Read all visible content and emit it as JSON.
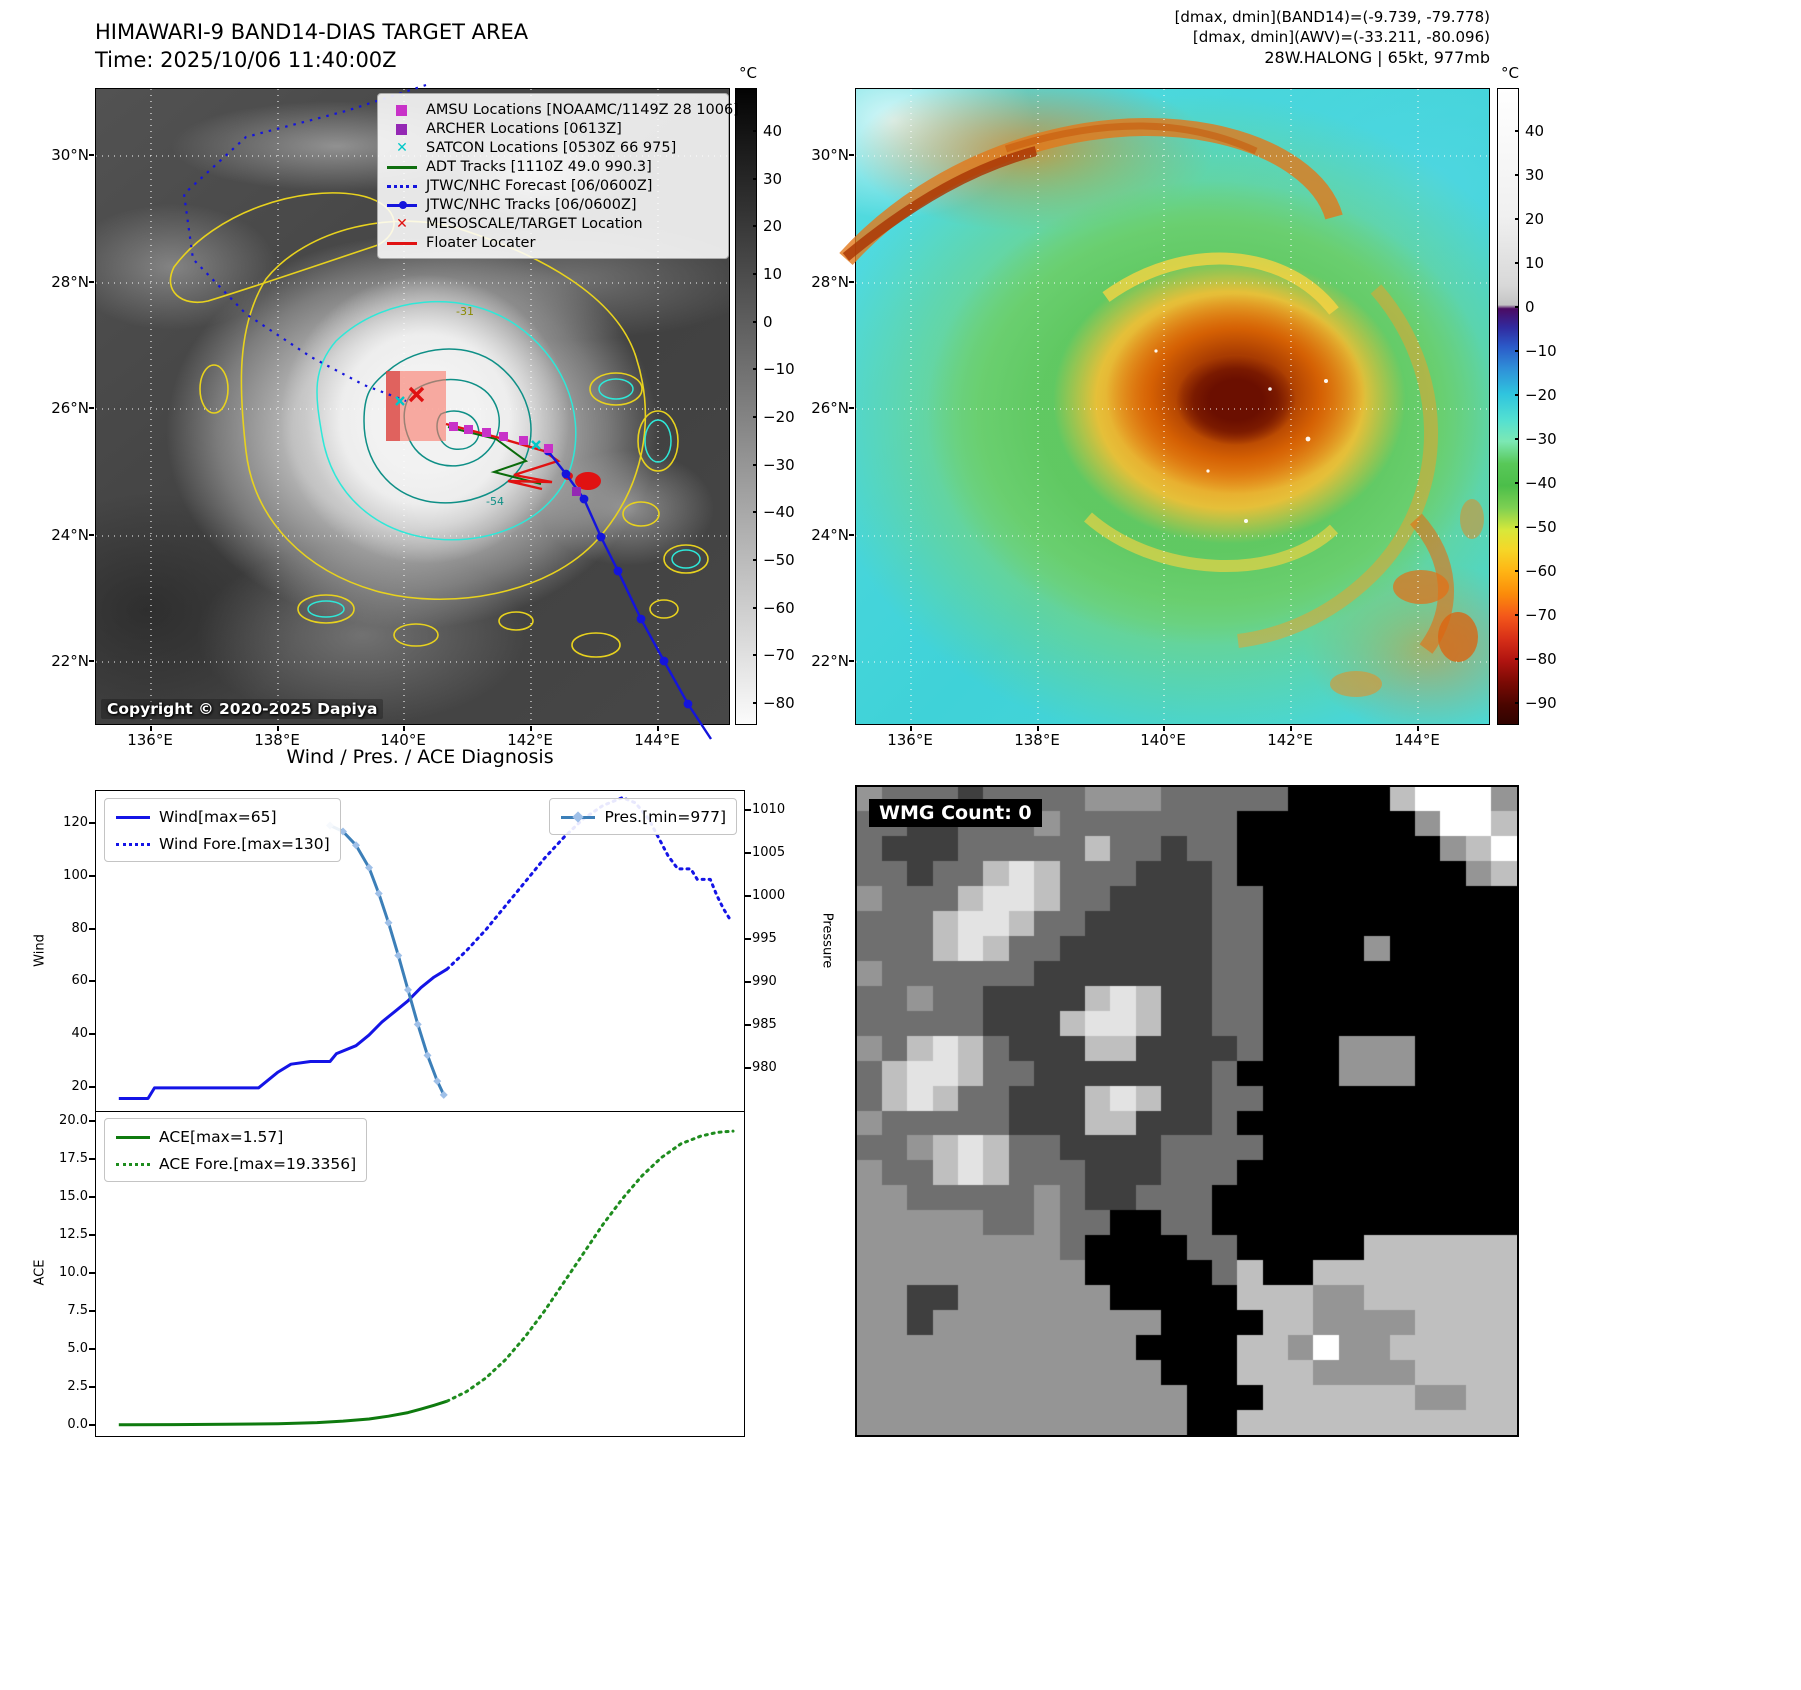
{
  "band14": {
    "title": "HIMAWARI-9 BAND14-DIAS TARGET AREA",
    "subtitle": "Time: 2025/10/06 11:40:00Z",
    "copyright": "Copyright © 2020-2025 Dapiya",
    "colorbar_unit": "°C",
    "colorbar_ticks": [
      40,
      30,
      20,
      10,
      0,
      -10,
      -20,
      -30,
      -40,
      -50,
      -60,
      -70,
      -80
    ],
    "x_ticks": [
      "136°E",
      "138°E",
      "140°E",
      "142°E",
      "144°E"
    ],
    "y_ticks": [
      "30°N",
      "28°N",
      "26°N",
      "24°N",
      "22°N"
    ],
    "contour_labels": [
      "-31",
      "-54"
    ],
    "legend": [
      {
        "marker": "sq",
        "color": "#c832c8",
        "label": "AMSU Locations [NOAAMC/1149Z 28 1006]"
      },
      {
        "marker": "sq",
        "color": "#9428b4",
        "label": "ARCHER Locations [0613Z]"
      },
      {
        "marker": "x",
        "color": "#00c8c8",
        "label": "SATCON Locations [0530Z 66 975]"
      },
      {
        "marker": "line",
        "color": "#0f6e0f",
        "label": "ADT Tracks [1110Z 49.0 990.3]"
      },
      {
        "marker": "dline",
        "color": "#1414dc",
        "label": "JTWC/NHC Forecast [06/0600Z]"
      },
      {
        "marker": "mline",
        "color": "#1414dc",
        "label": "JTWC/NHC Tracks [06/0600Z]"
      },
      {
        "marker": "x",
        "color": "#e01212",
        "label": "MESOSCALE/TARGET Location"
      },
      {
        "marker": "line",
        "color": "#e01212",
        "label": "Floater Locater"
      }
    ]
  },
  "awv": {
    "header_lines": [
      "[dmax, dmin](BAND14)=(-9.739, -79.778)",
      "[dmax, dmin](AWV)=(-33.211, -80.096)",
      "28W.HALONG | 65kt, 977mb"
    ],
    "colorbar_unit": "°C",
    "colorbar_ticks": [
      40,
      30,
      20,
      10,
      0,
      -10,
      -20,
      -30,
      -40,
      -50,
      -60,
      -70,
      -80,
      -90
    ],
    "x_ticks": [
      "136°E",
      "138°E",
      "140°E",
      "142°E",
      "144°E"
    ],
    "y_ticks": [
      "30°N",
      "28°N",
      "26°N",
      "24°N",
      "22°N"
    ]
  },
  "diagnosis": {
    "title": "Wind / Pres. / ACE Diagnosis",
    "axis_labels": {
      "wind": "Wind",
      "pressure": "Pressure",
      "ace": "ACE"
    }
  },
  "wmg": {
    "label": "WMG Count: 0",
    "palette": {
      "k": "#000000",
      "d": "#3f3f3f",
      "m": "#6f6f6f",
      "g": "#959595",
      "l": "#bfbfbf",
      "w": "#e3e3e3",
      "W": "#ffffff"
    },
    "rows": [
      "gmmmdmmmmgggmmmmmkkkklWWWg",
      "mmddmmmgmmmmmmmkkkkkkkgWWl",
      "mdddmmmmmlmmdmmkkkkkkkkglW",
      "mmdmmlwlmmmdddmkkkkkkkkkgl",
      "gmmmlwwlmmddddmmkkkkkkkkkk",
      "mmmlwwlmmdddddmmkkkkkkkkkk",
      "mmmlwlmmddddddmmkkkkgkkkkk",
      "gmmmmmmdddddddmmkkkkkkkkkk",
      "mmgmmddddlwlddmmkkkkkkkkkk",
      "mmmmmdddlwwlddmmkkkkkkkkkk",
      "gmlwlmdddllddddmkkkgggkkkk",
      "mlwwlmmdddddddmkkkkgggkkkk",
      "mlwlmmdddlwlddmmkkkkkkkkkk",
      "gmmmmmdddlldddmkkkkkkkkkkk",
      "mmglwlmmddddmmmmkkkkkkkkkk",
      "gmmlwlmmmdddmmmkkkkkkkkkkk",
      "ggmmmmmgmddmmmkkkkkkkkkkkk",
      "gggggmmgmmkkmmkkkkkkkkkkkk",
      "ggggggggmkkkkmmkkkkkllllll",
      "gggggggggkkkkkmlkkllllllll",
      "ggddggggggkkkkklllggllllll",
      "ggdgggggggggkkkkllggggllll",
      "gggggggggggkkkkllgWgglllll",
      "ggggggggggggkkklllggggllll",
      "gggggggggggggkkkllllllggll",
      "gggggggggggggkklllllllllll"
    ]
  },
  "chart_data": [
    {
      "type": "line",
      "title": "Wind / Pres. / ACE Diagnosis",
      "ylabel_left": "Wind",
      "ylabel_right": "Pressure",
      "x_range": [
        0,
        100
      ],
      "wind_range": [
        10.5,
        132.5
      ],
      "pressure_range": [
        974.9,
        1012.3
      ],
      "wind_ticks": [
        20,
        40,
        60,
        80,
        100,
        120
      ],
      "pressure_ticks": [
        980,
        985,
        990,
        995,
        1000,
        1005,
        1010
      ],
      "grid": false,
      "legend_position": "upper left / upper right",
      "series": [
        {
          "name": "Wind[max=65]",
          "axis": "wind",
          "style": "solid",
          "color": "#1414e6",
          "width": 3,
          "points": [
            [
              3.5,
              16
            ],
            [
              8,
              16
            ],
            [
              9,
              20
            ],
            [
              25,
              20
            ],
            [
              28,
              26
            ],
            [
              30,
              29
            ],
            [
              33,
              30
            ],
            [
              36,
              30
            ],
            [
              37,
              33
            ],
            [
              40,
              36
            ],
            [
              42,
              40
            ],
            [
              44,
              45
            ],
            [
              46,
              49
            ],
            [
              48,
              53
            ],
            [
              50,
              58
            ],
            [
              52,
              62
            ],
            [
              54,
              65
            ]
          ]
        },
        {
          "name": "Wind Fore.[max=130]",
          "axis": "wind",
          "style": "dotted",
          "color": "#1414e6",
          "width": 3,
          "points": [
            [
              54,
              65
            ],
            [
              57,
              72
            ],
            [
              60,
              80
            ],
            [
              63,
              89
            ],
            [
              66,
              98
            ],
            [
              69,
              107
            ],
            [
              72,
              115
            ],
            [
              75,
              122
            ],
            [
              78,
              127
            ],
            [
              81,
              130
            ],
            [
              83,
              128
            ],
            [
              85,
              122
            ],
            [
              86.5,
              115
            ],
            [
              88,
              108
            ],
            [
              89.5,
              103
            ],
            [
              91.5,
              103
            ],
            [
              92.5,
              99
            ],
            [
              94.5,
              99
            ],
            [
              95.5,
              93
            ],
            [
              96.5,
              88
            ],
            [
              97.5,
              84
            ]
          ]
        },
        {
          "name": "Pres.[min=977]",
          "axis": "pressure",
          "style": "solid",
          "color": "#3c7fb8",
          "width": 3,
          "markers": true,
          "points": [
            [
              36,
              1008.3
            ],
            [
              38,
              1007.6
            ],
            [
              40,
              1006
            ],
            [
              42,
              1003.4
            ],
            [
              43.5,
              1000.4
            ],
            [
              45,
              997
            ],
            [
              46.5,
              993.2
            ],
            [
              48,
              989.2
            ],
            [
              49.5,
              985.2
            ],
            [
              51,
              981.6
            ],
            [
              52.5,
              978.6
            ],
            [
              53.5,
              977
            ]
          ]
        }
      ]
    },
    {
      "type": "line",
      "ylabel_left": "ACE",
      "x_range": [
        0,
        100
      ],
      "ace_range": [
        -0.72,
        20.66
      ],
      "ace_ticks": [
        0,
        2.5,
        5,
        7.5,
        10,
        12.5,
        15,
        17.5,
        20
      ],
      "grid": false,
      "series": [
        {
          "name": "ACE[max=1.57]",
          "axis": "ace",
          "style": "solid",
          "color": "#0e7a0e",
          "width": 3,
          "points": [
            [
              3.5,
              0.02
            ],
            [
              12,
              0.03
            ],
            [
              20,
              0.05
            ],
            [
              28,
              0.09
            ],
            [
              34,
              0.16
            ],
            [
              38,
              0.26
            ],
            [
              42,
              0.4
            ],
            [
              45,
              0.58
            ],
            [
              48,
              0.82
            ],
            [
              50,
              1.05
            ],
            [
              52,
              1.3
            ],
            [
              54,
              1.57
            ]
          ]
        },
        {
          "name": "ACE Fore.[max=19.3356]",
          "axis": "ace",
          "style": "dotted",
          "color": "#1e8c1e",
          "width": 3,
          "points": [
            [
              54,
              1.57
            ],
            [
              57,
              2.2
            ],
            [
              60,
              3.1
            ],
            [
              63,
              4.3
            ],
            [
              66,
              5.8
            ],
            [
              69,
              7.5
            ],
            [
              72,
              9.4
            ],
            [
              75,
              11.3
            ],
            [
              78,
              13.2
            ],
            [
              81,
              14.9
            ],
            [
              84,
              16.4
            ],
            [
              87,
              17.6
            ],
            [
              90,
              18.5
            ],
            [
              93,
              19.0
            ],
            [
              95.5,
              19.25
            ],
            [
              98,
              19.34
            ]
          ]
        }
      ]
    }
  ]
}
